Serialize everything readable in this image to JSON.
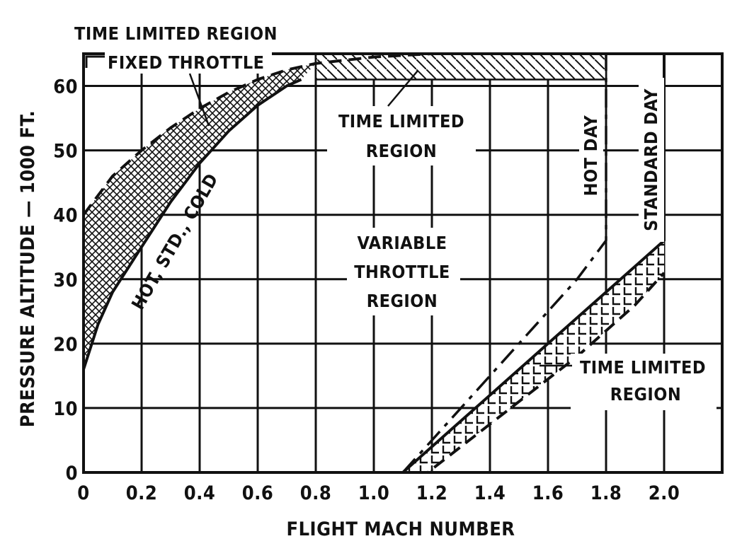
{
  "chart_data": {
    "type": "line",
    "title": "",
    "xlabel": "FLIGHT MACH NUMBER",
    "ylabel": "PRESSURE ALTITUDE — 1000 FT.",
    "xlim": [
      0,
      2.2
    ],
    "ylim": [
      0,
      65
    ],
    "x_ticks": [
      "0",
      "0.2",
      "0.4",
      "0.6",
      "0.8",
      "1.0",
      "1.2",
      "1.4",
      "1.6",
      "1.8",
      "2.0"
    ],
    "y_ticks": [
      "0",
      "10",
      "20",
      "30",
      "40",
      "50",
      "60"
    ],
    "grid": true,
    "series": [
      {
        "name": "HOT, STD., COLD",
        "style": "solid",
        "x": [
          0,
          0.05,
          0.1,
          0.2,
          0.3,
          0.4,
          0.5,
          0.6,
          0.7,
          0.75
        ],
        "y": [
          16,
          23,
          28,
          35,
          42,
          48,
          53,
          57,
          60,
          61
        ]
      },
      {
        "name": "",
        "style": "dashed",
        "x": [
          0,
          0.1,
          0.2,
          0.3,
          0.4,
          0.5,
          0.6,
          0.7,
          0.8,
          1.0,
          1.2
        ],
        "y": [
          40,
          46,
          50,
          53.5,
          56.5,
          59,
          61,
          62.5,
          63.5,
          64.5,
          65
        ]
      },
      {
        "name": "HOT DAY",
        "style": "dashdot",
        "x": [
          1.1,
          1.2,
          1.3,
          1.4,
          1.5,
          1.6,
          1.7,
          1.8,
          1.8
        ],
        "y": [
          0,
          5,
          10,
          15,
          20,
          25,
          30,
          36,
          65
        ]
      },
      {
        "name": "STANDARD DAY",
        "style": "solid",
        "x": [
          1.1,
          1.2,
          1.3,
          1.4,
          1.5,
          1.6,
          1.7,
          1.8,
          1.9,
          2.0,
          2.0
        ],
        "y": [
          0,
          4,
          8,
          12,
          16,
          20,
          24,
          28,
          32,
          36,
          65
        ]
      },
      {
        "name": "",
        "style": "dashed",
        "x": [
          1.1,
          1.3,
          1.5,
          1.7,
          1.9,
          2.0
        ],
        "y": [
          -3,
          4,
          11,
          18,
          26,
          31
        ]
      }
    ],
    "regions": [
      {
        "name": "FIXED THROTTLE",
        "label": "TIME LIMITED REGION"
      },
      {
        "name": "TIME LIMITED REGION (top)",
        "x": [
          0.8,
          1.8
        ],
        "y": [
          61,
          65
        ]
      },
      {
        "name": "TIME LIMITED REGION (bottom right)"
      }
    ],
    "annotations": {
      "fixed_throttle_title": "TIME LIMITED REGION",
      "fixed_throttle": "FIXED THROTTLE",
      "top_region_line1": "TIME LIMITED",
      "top_region_line2": "REGION",
      "variable_line1": "VARIABLE",
      "variable_line2": "THROTTLE",
      "variable_line3": "REGION",
      "hot_day": "HOT DAY",
      "standard_day": "STANDARD DAY",
      "curve_label": "HOT, STD., COLD",
      "bottom_region_line1": "TIME LIMITED",
      "bottom_region_line2": "REGION"
    }
  }
}
